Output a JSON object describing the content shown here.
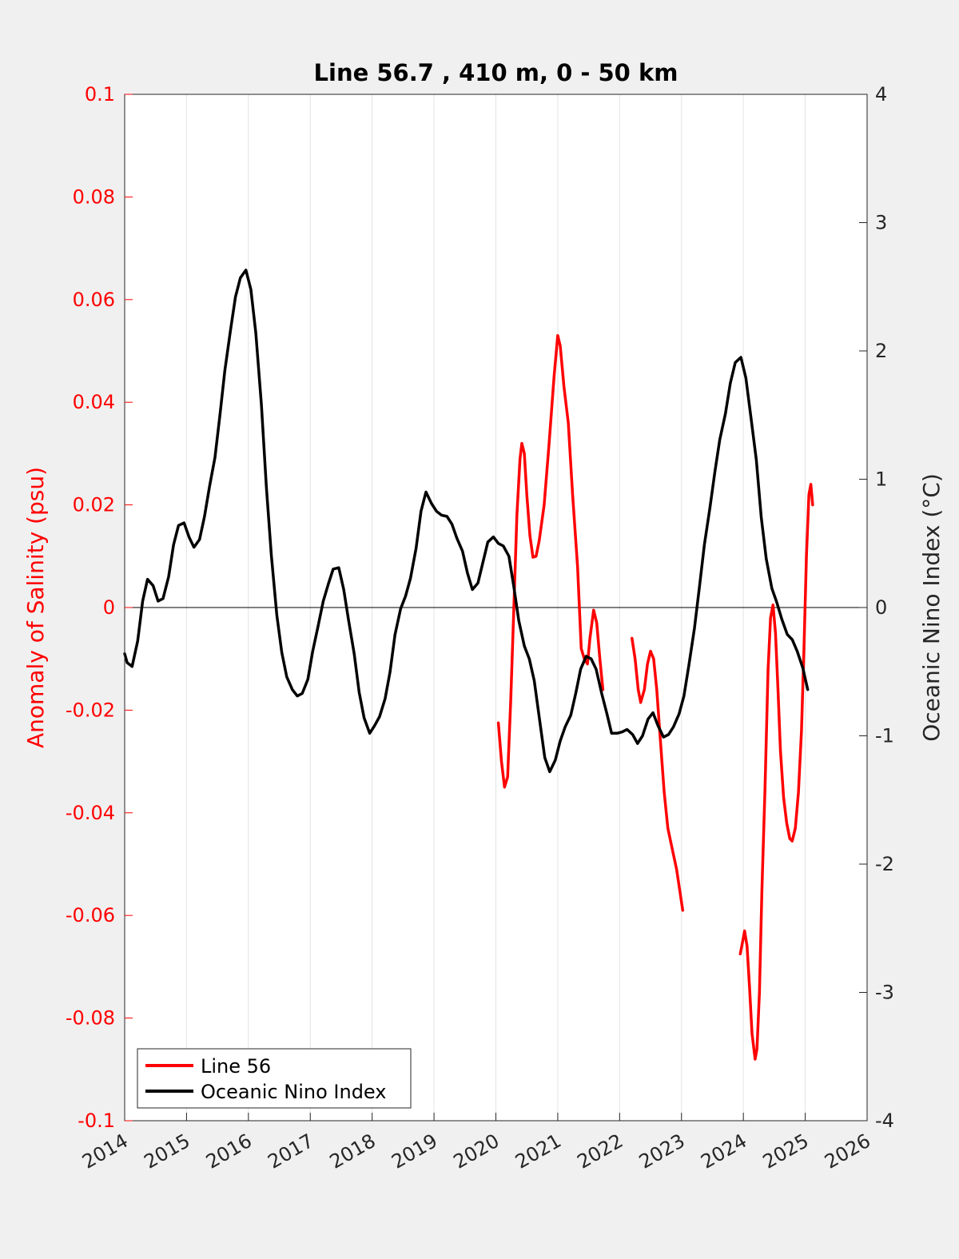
{
  "chart_data": {
    "type": "line",
    "title": "Line 56.7 , 410 m, 0 - 50 km",
    "xlim": [
      2014,
      2026
    ],
    "x_ticks": [
      "2014",
      "2015",
      "2016",
      "2017",
      "2018",
      "2019",
      "2020",
      "2021",
      "2022",
      "2023",
      "2024",
      "2025",
      "2026"
    ],
    "ylabel_left": "Anomaly of Salinity (psu)",
    "ylim_left": [
      -0.1,
      0.1
    ],
    "y_ticks_left": [
      "-0.1",
      "-0.08",
      "-0.06",
      "-0.04",
      "-0.02",
      "0",
      "0.02",
      "0.04",
      "0.06",
      "0.08",
      "0.1"
    ],
    "ylabel_right": "Oceanic Nino Index (°C)",
    "ylim_right": [
      -4,
      4
    ],
    "y_ticks_right": [
      "-4",
      "-3",
      "-2",
      "-1",
      "0",
      "1",
      "2",
      "3",
      "4"
    ],
    "grid": "vertical",
    "zero_line": true,
    "legend_position": "bottom-left",
    "series": [
      {
        "name": "Line 56",
        "axis": "left",
        "color": "#ff0000",
        "segments": [
          [
            [
              2020.04,
              -0.0225
            ],
            [
              2020.09,
              -0.03
            ],
            [
              2020.14,
              -0.035
            ],
            [
              2020.19,
              -0.033
            ],
            [
              2020.24,
              -0.018
            ],
            [
              2020.29,
              0.0
            ],
            [
              2020.34,
              0.018
            ],
            [
              2020.39,
              0.029
            ],
            [
              2020.42,
              0.032
            ],
            [
              2020.46,
              0.03
            ],
            [
              2020.5,
              0.022
            ],
            [
              2020.55,
              0.014
            ],
            [
              2020.6,
              0.0098
            ],
            [
              2020.65,
              0.01
            ],
            [
              2020.7,
              0.013
            ],
            [
              2020.78,
              0.02
            ],
            [
              2020.86,
              0.032
            ],
            [
              2020.94,
              0.045
            ],
            [
              2021.0,
              0.053
            ],
            [
              2021.04,
              0.051
            ],
            [
              2021.1,
              0.043
            ],
            [
              2021.17,
              0.036
            ],
            [
              2021.24,
              0.022
            ],
            [
              2021.32,
              0.008
            ],
            [
              2021.38,
              -0.008
            ],
            [
              2021.43,
              -0.01
            ],
            [
              2021.48,
              -0.011
            ],
            [
              2021.52,
              -0.006
            ],
            [
              2021.58,
              -0.0005
            ],
            [
              2021.63,
              -0.003
            ],
            [
              2021.68,
              -0.01
            ],
            [
              2021.73,
              -0.016
            ]
          ],
          [
            [
              2022.2,
              -0.006
            ],
            [
              2022.25,
              -0.01
            ],
            [
              2022.3,
              -0.016
            ],
            [
              2022.34,
              -0.0185
            ],
            [
              2022.4,
              -0.016
            ],
            [
              2022.45,
              -0.011
            ],
            [
              2022.5,
              -0.0085
            ],
            [
              2022.55,
              -0.01
            ],
            [
              2022.6,
              -0.016
            ],
            [
              2022.66,
              -0.026
            ],
            [
              2022.72,
              -0.036
            ],
            [
              2022.78,
              -0.043
            ],
            [
              2022.85,
              -0.047
            ],
            [
              2022.92,
              -0.051
            ],
            [
              2023.02,
              -0.059
            ]
          ],
          [
            [
              2023.95,
              -0.0675
            ],
            [
              2023.99,
              -0.065
            ],
            [
              2024.02,
              -0.063
            ],
            [
              2024.06,
              -0.066
            ],
            [
              2024.1,
              -0.074
            ],
            [
              2024.14,
              -0.083
            ],
            [
              2024.19,
              -0.088
            ],
            [
              2024.22,
              -0.086
            ],
            [
              2024.26,
              -0.075
            ],
            [
              2024.3,
              -0.055
            ],
            [
              2024.35,
              -0.035
            ],
            [
              2024.4,
              -0.012
            ],
            [
              2024.44,
              -0.002
            ],
            [
              2024.48,
              0.0005
            ],
            [
              2024.52,
              -0.005
            ],
            [
              2024.56,
              -0.016
            ],
            [
              2024.6,
              -0.028
            ],
            [
              2024.65,
              -0.037
            ],
            [
              2024.7,
              -0.042
            ],
            [
              2024.75,
              -0.045
            ],
            [
              2024.79,
              -0.0455
            ],
            [
              2024.84,
              -0.043
            ],
            [
              2024.89,
              -0.036
            ],
            [
              2024.94,
              -0.024
            ],
            [
              2024.98,
              -0.008
            ],
            [
              2025.02,
              0.01
            ],
            [
              2025.06,
              0.022
            ],
            [
              2025.09,
              0.024
            ],
            [
              2025.12,
              0.02
            ]
          ]
        ]
      },
      {
        "name": "Oceanic Nino Index",
        "axis": "right",
        "color": "#000000",
        "points": [
          [
            2014.0,
            -0.36
          ],
          [
            2014.04,
            -0.43
          ],
          [
            2014.12,
            -0.46
          ],
          [
            2014.21,
            -0.26
          ],
          [
            2014.29,
            0.05
          ],
          [
            2014.37,
            0.22
          ],
          [
            2014.46,
            0.17
          ],
          [
            2014.54,
            0.05
          ],
          [
            2014.62,
            0.07
          ],
          [
            2014.71,
            0.24
          ],
          [
            2014.79,
            0.49
          ],
          [
            2014.87,
            0.64
          ],
          [
            2014.96,
            0.66
          ],
          [
            2015.04,
            0.55
          ],
          [
            2015.12,
            0.47
          ],
          [
            2015.21,
            0.53
          ],
          [
            2015.29,
            0.71
          ],
          [
            2015.37,
            0.94
          ],
          [
            2015.46,
            1.17
          ],
          [
            2015.54,
            1.5
          ],
          [
            2015.62,
            1.85
          ],
          [
            2015.71,
            2.16
          ],
          [
            2015.79,
            2.42
          ],
          [
            2015.87,
            2.57
          ],
          [
            2015.96,
            2.63
          ],
          [
            2016.04,
            2.48
          ],
          [
            2016.12,
            2.14
          ],
          [
            2016.21,
            1.58
          ],
          [
            2016.29,
            0.94
          ],
          [
            2016.37,
            0.41
          ],
          [
            2016.46,
            -0.06
          ],
          [
            2016.54,
            -0.35
          ],
          [
            2016.62,
            -0.54
          ],
          [
            2016.71,
            -0.64
          ],
          [
            2016.79,
            -0.69
          ],
          [
            2016.87,
            -0.67
          ],
          [
            2016.96,
            -0.56
          ],
          [
            2017.04,
            -0.34
          ],
          [
            2017.12,
            -0.16
          ],
          [
            2017.21,
            0.05
          ],
          [
            2017.29,
            0.18
          ],
          [
            2017.37,
            0.3
          ],
          [
            2017.46,
            0.31
          ],
          [
            2017.54,
            0.14
          ],
          [
            2017.62,
            -0.1
          ],
          [
            2017.71,
            -0.36
          ],
          [
            2017.79,
            -0.66
          ],
          [
            2017.87,
            -0.86
          ],
          [
            2017.96,
            -0.98
          ],
          [
            2018.04,
            -0.92
          ],
          [
            2018.12,
            -0.85
          ],
          [
            2018.21,
            -0.71
          ],
          [
            2018.29,
            -0.5
          ],
          [
            2018.37,
            -0.21
          ],
          [
            2018.46,
            -0.01
          ],
          [
            2018.54,
            0.09
          ],
          [
            2018.62,
            0.23
          ],
          [
            2018.71,
            0.46
          ],
          [
            2018.79,
            0.75
          ],
          [
            2018.87,
            0.9
          ],
          [
            2018.96,
            0.81
          ],
          [
            2019.04,
            0.75
          ],
          [
            2019.12,
            0.72
          ],
          [
            2019.21,
            0.71
          ],
          [
            2019.29,
            0.65
          ],
          [
            2019.37,
            0.54
          ],
          [
            2019.46,
            0.44
          ],
          [
            2019.54,
            0.27
          ],
          [
            2019.62,
            0.14
          ],
          [
            2019.71,
            0.19
          ],
          [
            2019.79,
            0.35
          ],
          [
            2019.87,
            0.51
          ],
          [
            2019.96,
            0.55
          ],
          [
            2020.04,
            0.5
          ],
          [
            2020.12,
            0.48
          ],
          [
            2020.21,
            0.4
          ],
          [
            2020.29,
            0.16
          ],
          [
            2020.37,
            -0.1
          ],
          [
            2020.46,
            -0.3
          ],
          [
            2020.54,
            -0.4
          ],
          [
            2020.62,
            -0.57
          ],
          [
            2020.71,
            -0.89
          ],
          [
            2020.79,
            -1.17
          ],
          [
            2020.87,
            -1.28
          ],
          [
            2020.96,
            -1.19
          ],
          [
            2021.04,
            -1.04
          ],
          [
            2021.12,
            -0.93
          ],
          [
            2021.21,
            -0.84
          ],
          [
            2021.29,
            -0.67
          ],
          [
            2021.37,
            -0.48
          ],
          [
            2021.46,
            -0.38
          ],
          [
            2021.54,
            -0.4
          ],
          [
            2021.62,
            -0.48
          ],
          [
            2021.71,
            -0.67
          ],
          [
            2021.79,
            -0.82
          ],
          [
            2021.87,
            -0.98
          ],
          [
            2021.96,
            -0.98
          ],
          [
            2022.04,
            -0.97
          ],
          [
            2022.12,
            -0.95
          ],
          [
            2022.21,
            -0.99
          ],
          [
            2022.29,
            -1.06
          ],
          [
            2022.37,
            -1.0
          ],
          [
            2022.46,
            -0.87
          ],
          [
            2022.54,
            -0.82
          ],
          [
            2022.62,
            -0.92
          ],
          [
            2022.71,
            -1.01
          ],
          [
            2022.79,
            -0.99
          ],
          [
            2022.87,
            -0.93
          ],
          [
            2022.96,
            -0.83
          ],
          [
            2023.04,
            -0.69
          ],
          [
            2023.12,
            -0.45
          ],
          [
            2023.21,
            -0.16
          ],
          [
            2023.29,
            0.16
          ],
          [
            2023.37,
            0.49
          ],
          [
            2023.46,
            0.78
          ],
          [
            2023.54,
            1.06
          ],
          [
            2023.62,
            1.31
          ],
          [
            2023.71,
            1.51
          ],
          [
            2023.79,
            1.75
          ],
          [
            2023.87,
            1.91
          ],
          [
            2023.96,
            1.95
          ],
          [
            2024.04,
            1.79
          ],
          [
            2024.12,
            1.49
          ],
          [
            2024.21,
            1.15
          ],
          [
            2024.29,
            0.7
          ],
          [
            2024.37,
            0.38
          ],
          [
            2024.46,
            0.15
          ],
          [
            2024.54,
            0.04
          ],
          [
            2024.62,
            -0.09
          ],
          [
            2024.71,
            -0.21
          ],
          [
            2024.79,
            -0.25
          ],
          [
            2024.87,
            -0.34
          ],
          [
            2024.96,
            -0.47
          ],
          [
            2025.04,
            -0.64
          ]
        ]
      }
    ]
  }
}
